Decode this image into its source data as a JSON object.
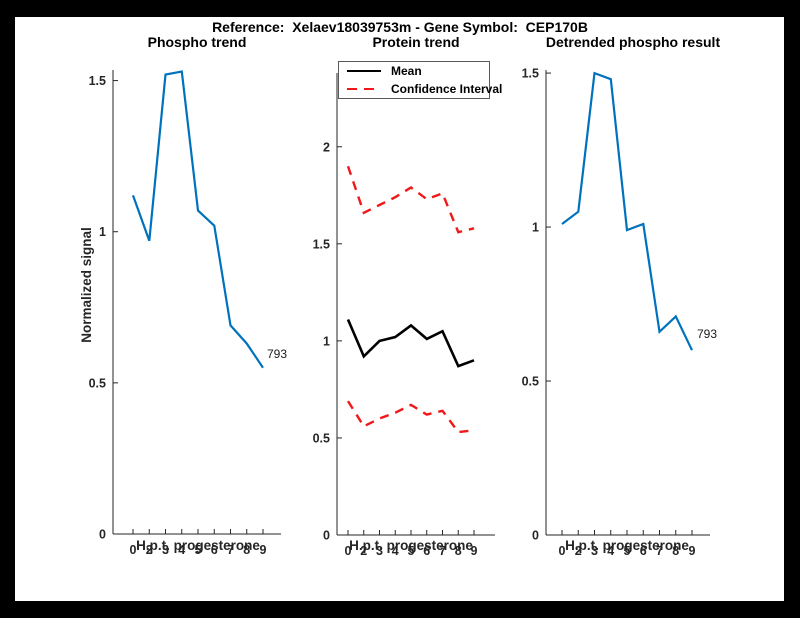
{
  "figure": {
    "title": "Reference:  Xelaev18039753m - Gene Symbol:  CEP170B"
  },
  "colors": {
    "phospho_blue": "#0072BD",
    "ci_red": "#f01818",
    "mean_black": "#000000",
    "axis_gray": "#262626"
  },
  "chart_data": [
    {
      "type": "line",
      "title": "Phospho trend",
      "xlabel": "H.p.t. progesterone",
      "ylabel": "Normalized signal",
      "x_tick_labels": [
        "0",
        "2",
        "3",
        "4",
        "5",
        "6",
        "7",
        "8",
        "9"
      ],
      "yticks": [
        0,
        0.5,
        1,
        1.5
      ],
      "ylim": [
        0,
        1.535
      ],
      "grid": false,
      "end_label": "793",
      "series": [
        {
          "name": "phospho-signal",
          "color": "#0072BD",
          "style": "solid",
          "x_hours": [
            0,
            2,
            3,
            4,
            5,
            6,
            7,
            8,
            9
          ],
          "values": [
            1.12,
            0.97,
            1.52,
            1.53,
            1.07,
            1.02,
            0.69,
            0.63,
            0.55
          ]
        }
      ]
    },
    {
      "type": "line",
      "title": "Protein trend",
      "xlabel": "H.p.t. progesterone",
      "ylabel": "",
      "x_tick_labels": [
        "0",
        "2",
        "3",
        "4",
        "5",
        "6",
        "7",
        "8",
        "9"
      ],
      "yticks": [
        0,
        0.5,
        1,
        1.5,
        2
      ],
      "ylim": [
        0,
        2.38
      ],
      "grid": false,
      "legend": [
        "Mean",
        "Confidence Interval"
      ],
      "legend_position": "top-left-inside",
      "series": [
        {
          "name": "mean",
          "color": "#000000",
          "style": "solid",
          "x_hours": [
            0,
            2,
            3,
            4,
            5,
            6,
            7,
            8,
            9
          ],
          "values": [
            1.11,
            0.92,
            1.0,
            1.02,
            1.08,
            1.01,
            1.05,
            0.87,
            0.9
          ]
        },
        {
          "name": "confidence-upper",
          "color": "#f01818",
          "style": "dashed",
          "x_hours": [
            0,
            2,
            3,
            4,
            5,
            6,
            7,
            8,
            9
          ],
          "values": [
            1.9,
            1.66,
            1.7,
            1.74,
            1.79,
            1.73,
            1.76,
            1.56,
            1.58
          ]
        },
        {
          "name": "confidence-lower",
          "color": "#f01818",
          "style": "dashed",
          "x_hours": [
            0,
            2,
            3,
            4,
            5,
            6,
            7,
            8,
            9
          ],
          "values": [
            0.69,
            0.56,
            0.6,
            0.63,
            0.67,
            0.62,
            0.64,
            0.53,
            0.54
          ]
        }
      ]
    },
    {
      "type": "line",
      "title": "Detrended phospho result",
      "xlabel": "H.p.t. progesterone",
      "ylabel": "",
      "x_tick_labels": [
        "0",
        "2",
        "3",
        "4",
        "5",
        "6",
        "7",
        "8",
        "9"
      ],
      "yticks": [
        0,
        0.5,
        1,
        1.5
      ],
      "ylim": [
        0,
        1.51
      ],
      "grid": false,
      "end_label": "793",
      "series": [
        {
          "name": "detrended-phospho",
          "color": "#0072BD",
          "style": "solid",
          "x_hours": [
            0,
            2,
            3,
            4,
            5,
            6,
            7,
            8,
            9
          ],
          "values": [
            1.01,
            1.05,
            1.5,
            1.48,
            0.99,
            1.01,
            0.66,
            0.71,
            0.6
          ]
        }
      ]
    }
  ]
}
